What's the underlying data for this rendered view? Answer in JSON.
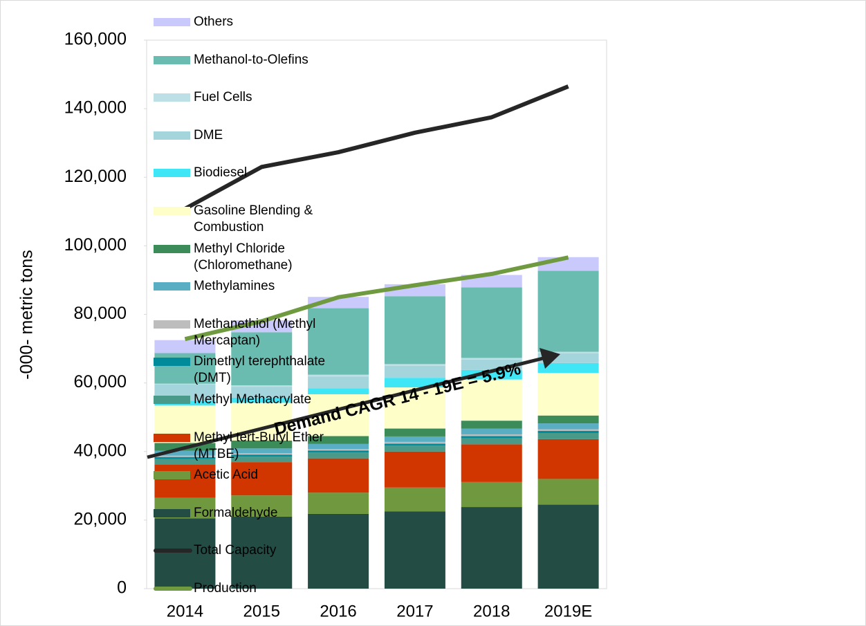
{
  "chart_data": {
    "type": "bar",
    "stacked": true,
    "y_label": "-000- metric tons",
    "annotation": "Demand CAGR 14 - 19E = 5.9%",
    "categories": [
      "2014",
      "2015",
      "2016",
      "2017",
      "2018",
      "2019E"
    ],
    "ylim": [
      0,
      160000
    ],
    "yticks": [
      0,
      {
        "value": 20000,
        "label": "20,000"
      },
      {
        "value": 40000,
        "label": "40,000"
      },
      {
        "value": 60000,
        "label": "60,000"
      },
      {
        "value": 80000,
        "label": "80,000"
      },
      {
        "value": 100000,
        "label": "100,000"
      },
      {
        "value": 120000,
        "label": "120,000"
      },
      {
        "value": 140000,
        "label": "140,000"
      },
      {
        "value": 160000,
        "label": "160,000"
      }
    ],
    "grid": false,
    "legend": "right",
    "series": [
      {
        "name": "Formaldehyde",
        "color": "#234c45",
        "values": [
          20500,
          21000,
          21800,
          22500,
          23800,
          24500
        ]
      },
      {
        "name": "Acetic Acid",
        "color": "#70993f",
        "values": [
          6000,
          6200,
          6200,
          7000,
          7300,
          7500
        ]
      },
      {
        "name": "Methyl tert-Butyl Ether (MTBE)",
        "color": "#d13600",
        "values": [
          9700,
          9700,
          10000,
          10500,
          11000,
          11600
        ]
      },
      {
        "name": "Methyl Methacrylate",
        "color": "#4a9a8a",
        "values": [
          1600,
          1600,
          1700,
          1700,
          1800,
          1800
        ]
      },
      {
        "name": "Dimethyl terephthalate (DMT)",
        "color": "#008a9a",
        "values": [
          600,
          600,
          600,
          600,
          600,
          600
        ]
      },
      {
        "name": "Methanethiol (Methyl Mercaptan)",
        "color": "#bdbdbd",
        "values": [
          400,
          400,
          400,
          500,
          500,
          500
        ]
      },
      {
        "name": "Methylamines",
        "color": "#5aaec4",
        "values": [
          1400,
          1400,
          1500,
          1600,
          1700,
          1700
        ]
      },
      {
        "name": "Methyl Chloride (Chloromethane)",
        "color": "#3c8c5a",
        "values": [
          2300,
          2300,
          2300,
          2300,
          2300,
          2300
        ]
      },
      {
        "name": "Gasoline Blending & Combustion",
        "color": "#fefec8",
        "values": [
          10900,
          11000,
          12200,
          12000,
          12000,
          12400
        ]
      },
      {
        "name": "Biodiesel",
        "color": "#3fe6f6",
        "values": [
          1400,
          1500,
          1700,
          2800,
          2800,
          2900
        ]
      },
      {
        "name": "DME",
        "color": "#a4d4dc",
        "values": [
          4800,
          3200,
          3500,
          3500,
          3000,
          2800
        ]
      },
      {
        "name": "Fuel Cells",
        "color": "#bde0e6",
        "values": [
          200,
          400,
          500,
          500,
          500,
          500
        ]
      },
      {
        "name": "Methanol-to-Olefins",
        "color": "#6bbcb0",
        "values": [
          8900,
          15500,
          19400,
          19800,
          20600,
          23600
        ]
      },
      {
        "name": "Others",
        "color": "#c9c9fb",
        "values": [
          3800,
          3500,
          3300,
          3500,
          3600,
          4000
        ]
      },
      {
        "name": "Total Capacity",
        "color": "#262626",
        "type": "line",
        "values": [
          110800,
          123000,
          127300,
          133000,
          137500,
          146500
        ]
      },
      {
        "name": "Production",
        "color": "#6f9a40",
        "type": "line",
        "values": [
          72800,
          78000,
          85000,
          88500,
          91800,
          96600
        ]
      }
    ]
  }
}
